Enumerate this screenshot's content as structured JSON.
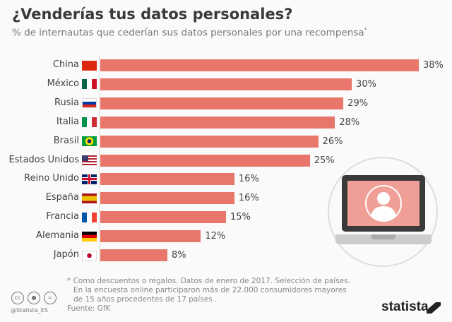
{
  "title": "¿Venderías tus datos personales?",
  "subtitle": "% de internautas que cederían sus datos personales por una recompensa",
  "subtitle_mark": "*",
  "chart_data": {
    "type": "bar",
    "orientation": "horizontal",
    "title": "¿Venderías tus datos personales?",
    "subtitle": "% de internautas que cederían sus datos personales por una recompensa*",
    "categories": [
      "China",
      "México",
      "Rusia",
      "Italia",
      "Brasil",
      "Estados Unidos",
      "Reino Unido",
      "España",
      "Francia",
      "Alemania",
      "Japón"
    ],
    "values": [
      38,
      30,
      29,
      28,
      26,
      25,
      16,
      16,
      15,
      12,
      8
    ],
    "value_labels": [
      "38%",
      "30%",
      "29%",
      "28%",
      "26%",
      "25%",
      "16%",
      "16%",
      "15%",
      "12%",
      "8%"
    ],
    "unit": "%",
    "xlim": [
      0,
      38
    ],
    "grid": false,
    "bar_color": "#e8766a"
  },
  "flags": [
    "cn",
    "mx",
    "ru",
    "it",
    "br",
    "us",
    "gb",
    "es",
    "fr",
    "de",
    "jp"
  ],
  "footer": {
    "note_lines": [
      "* Como descuentos o regalos. Datos de enero de 2017. Selección de países.",
      "En la encuesta online participaron más de 22.000 consumidores mayores",
      "de 15 años procedentes de 17 países ."
    ],
    "source": "Fuente: GfK",
    "handle": "@Statista_ES",
    "logo": "statista",
    "license_icons": [
      "cc",
      "by",
      "nd"
    ]
  }
}
